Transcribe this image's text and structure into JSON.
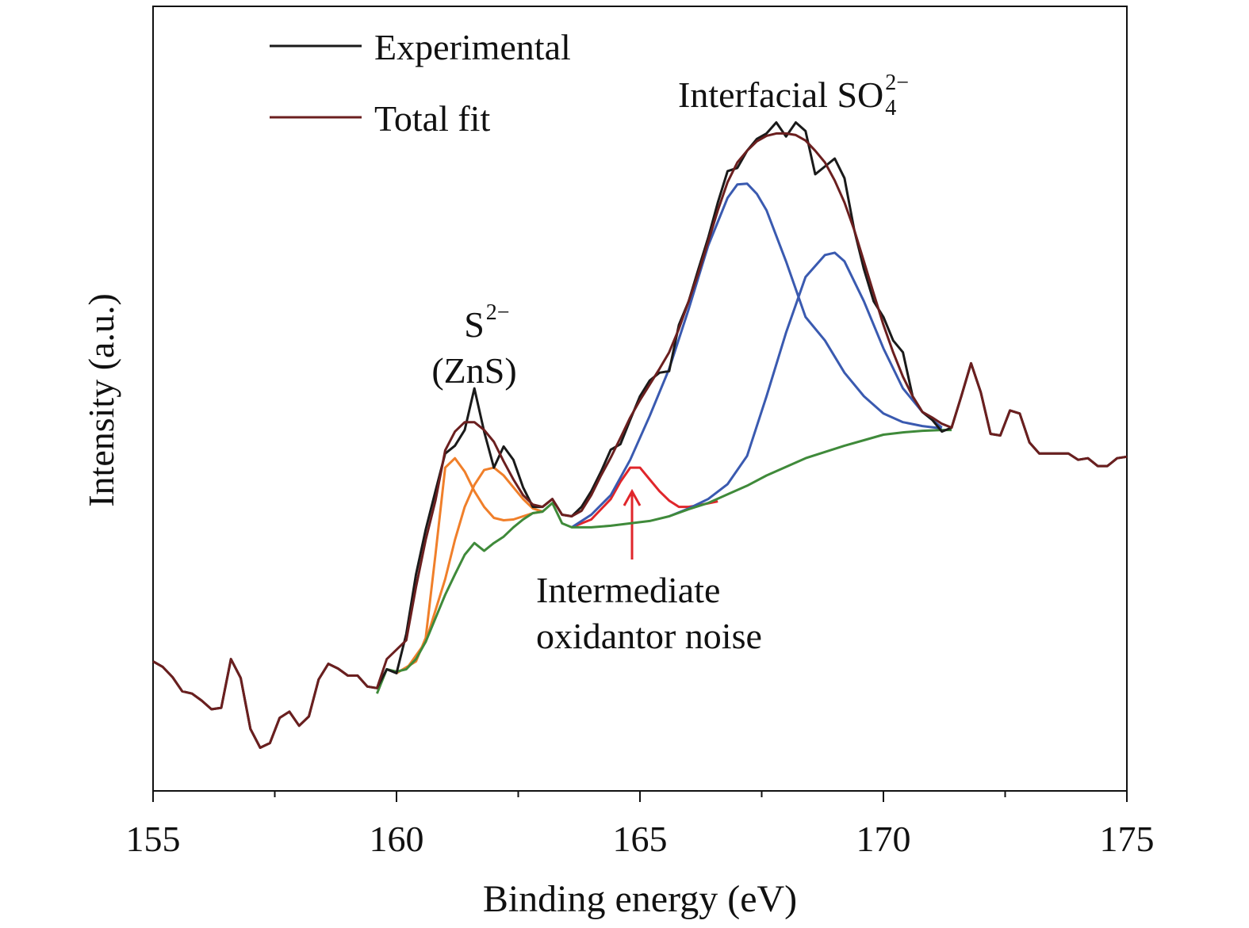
{
  "chart_data": {
    "type": "line",
    "xlabel": "Binding energy (eV)",
    "ylabel": "Intensity (a.u.)",
    "xlim": [
      155,
      175
    ],
    "ylim": [
      0,
      100
    ],
    "xticks": [
      155,
      160,
      165,
      170,
      175
    ],
    "xminorticks": [
      157.5,
      162.5,
      167.5,
      172.5
    ],
    "legend": "upper left",
    "x": [
      155,
      155.2,
      155.4,
      155.6,
      155.8,
      156,
      156.2,
      156.4,
      156.6,
      156.8,
      157,
      157.2,
      157.4,
      157.6,
      157.8,
      158,
      158.2,
      158.4,
      158.6,
      158.8,
      159,
      159.2,
      159.4,
      159.6,
      159.8,
      160,
      160.2,
      160.4,
      160.6,
      160.8,
      161,
      161.2,
      161.4,
      161.6,
      161.8,
      162,
      162.2,
      162.4,
      162.6,
      162.8,
      163,
      163.2,
      163.4,
      163.6,
      163.8,
      164,
      164.2,
      164.4,
      164.6,
      164.8,
      165,
      165.2,
      165.4,
      165.6,
      165.8,
      166,
      166.2,
      166.4,
      166.6,
      166.8,
      167,
      167.2,
      167.4,
      167.6,
      167.8,
      168,
      168.2,
      168.4,
      168.6,
      168.8,
      169,
      169.2,
      169.4,
      169.6,
      169.8,
      170,
      170.2,
      170.4,
      170.6,
      170.8,
      171,
      171.2,
      171.4,
      171.6,
      171.8,
      172,
      172.2,
      172.4,
      172.6,
      172.8,
      173,
      173.2,
      173.4,
      173.6,
      173.8,
      174,
      174.2,
      174.4,
      174.6,
      174.8,
      175
    ],
    "series": [
      {
        "name": "Experimental",
        "color": "#1a1a1a",
        "values": [
          16.5,
          15.8,
          14.5,
          12.7,
          12.4,
          11.5,
          10.4,
          10.6,
          16.8,
          14.4,
          7.9,
          5.5,
          6.1,
          9.3,
          10.1,
          8.3,
          9.5,
          14.2,
          16.2,
          15.6,
          14.7,
          14.7,
          13.3,
          13.1,
          15.5,
          15.0,
          20,
          27.6,
          33.3,
          38.2,
          43,
          44,
          46,
          51.3,
          45.8,
          41.2,
          43.9,
          42.2,
          38.7,
          36.2,
          36.2,
          37.2,
          35.2,
          35,
          36.2,
          38.2,
          40.7,
          43.5,
          44.2,
          47.3,
          50.3,
          52.3,
          53.3,
          53.5,
          59.4,
          62.4,
          66.5,
          70.5,
          75,
          79,
          79.4,
          81.6,
          83.1,
          83.8,
          85.2,
          83.4,
          85.2,
          84.1,
          78.6,
          79.6,
          80.6,
          78.1,
          71.5,
          66.5,
          62.4,
          60.4,
          57.4,
          55.9,
          50.3,
          48.3,
          47.3,
          45.8,
          46.3,
          50.3,
          54.5,
          50.8,
          45.5,
          45.3,
          48.5,
          48.1,
          44.4,
          43,
          43,
          43,
          43,
          42.2,
          42.4,
          41.4,
          41.4,
          42.4,
          42.6
        ]
      },
      {
        "name": "Total fit",
        "color": "#6b1f1f",
        "values": [
          16.5,
          15.8,
          14.5,
          12.7,
          12.4,
          11.5,
          10.4,
          10.6,
          16.8,
          14.4,
          7.9,
          5.5,
          6.1,
          9.3,
          10.1,
          8.3,
          9.5,
          14.2,
          16.2,
          15.6,
          14.7,
          14.7,
          13.3,
          13.1,
          16.8,
          18.0,
          19.2,
          26,
          32,
          37,
          43.4,
          45.8,
          47,
          47,
          46,
          44.5,
          42,
          39.7,
          37.7,
          36.5,
          36.2,
          37.2,
          35.2,
          35,
          35.7,
          37.7,
          40.2,
          42.5,
          45,
          47.6,
          49.8,
          51.8,
          53.8,
          55.9,
          58.9,
          62.4,
          66,
          70,
          74,
          77.6,
          80.1,
          81.6,
          82.8,
          83.5,
          83.8,
          83.8,
          83.6,
          82.9,
          81.6,
          80.1,
          77.8,
          75,
          71.5,
          67.5,
          63.4,
          59.4,
          55.9,
          52.8,
          50.3,
          48.3,
          47.6,
          46.8,
          46.3,
          50.3,
          54.5,
          50.8,
          45.5,
          45.3,
          48.5,
          48.1,
          44.4,
          43,
          43,
          43,
          43,
          42.2,
          42.4,
          41.4,
          41.4,
          42.4,
          42.6
        ]
      },
      {
        "color": "#f07f2a",
        "x": [
          160,
          160.4,
          160.6,
          160.8,
          161,
          161.2,
          161.4,
          161.6,
          161.8,
          162,
          162.2,
          162.4,
          162.6,
          162.8,
          163
        ],
        "values": [
          15,
          16.5,
          19.5,
          30.1,
          41.2,
          42.4,
          40.7,
          38.2,
          36.2,
          34.8,
          34.5,
          34.6,
          35,
          35.4,
          35.6
        ]
      },
      {
        "color": "#f07f2a",
        "x": [
          160.2,
          160.6,
          161,
          161.2,
          161.4,
          161.6,
          161.8,
          162,
          162.2,
          162.4,
          162.6,
          162.8,
          163
        ],
        "values": [
          15.5,
          19,
          27,
          32,
          36.2,
          39,
          40.9,
          41.2,
          40.2,
          38.7,
          37.2,
          36,
          35.6
        ]
      },
      {
        "color": "#e0262b",
        "x": [
          163.6,
          164,
          164.4,
          164.6,
          164.8,
          165,
          165.2,
          165.4,
          165.6,
          165.8,
          166,
          166.2,
          166.6
        ],
        "values": [
          33.6,
          34.6,
          37.2,
          39.4,
          41.2,
          41.2,
          39.7,
          38.2,
          37,
          36.2,
          36.2,
          36.4,
          36.9
        ]
      },
      {
        "color": "#3a5ab0",
        "x": [
          163.6,
          164,
          164.4,
          164.8,
          165.2,
          165.6,
          166,
          166.4,
          166.8,
          167,
          167.2,
          167.4,
          167.6,
          168,
          168.4,
          168.8,
          169.2,
          169.6,
          170,
          170.4,
          170.8,
          171.2
        ],
        "values": [
          33.6,
          35.2,
          37.7,
          42.2,
          47.8,
          53.8,
          61.4,
          69.5,
          75.6,
          77.3,
          77.4,
          76.1,
          74,
          67.5,
          60.4,
          57.4,
          53.3,
          50.3,
          48.1,
          47,
          46.5,
          46.2
        ]
      },
      {
        "color": "#3a5ab0",
        "x": [
          165.6,
          166,
          166.4,
          166.8,
          167.2,
          167.6,
          168,
          168.4,
          168.8,
          169,
          169.2,
          169.6,
          170,
          170.4,
          170.8,
          171.2
        ],
        "values": [
          35,
          36,
          37.2,
          39.1,
          42.7,
          50.3,
          58.4,
          65.5,
          68.3,
          68.6,
          67.5,
          62.4,
          56.4,
          51.3,
          48.3,
          46.3
        ]
      },
      {
        "color": "#3f8a3a",
        "x": [
          159.6,
          159.8,
          160,
          160.2,
          160.4,
          160.6,
          160.8,
          161,
          161.2,
          161.4,
          161.6,
          161.8,
          162,
          162.2,
          162.4,
          162.6,
          162.8,
          163,
          163.2,
          163.4,
          163.6,
          164,
          164.4,
          164.8,
          165.2,
          165.6,
          166,
          166.4,
          166.8,
          167.2,
          167.6,
          168,
          168.4,
          168.8,
          169.2,
          169.6,
          170,
          170.4,
          170.8,
          171.2,
          171.4
        ],
        "values": [
          12.4,
          15.5,
          15.2,
          15.5,
          16.8,
          19,
          22,
          25,
          27.6,
          30.1,
          31.6,
          30.6,
          31.6,
          32.4,
          33.6,
          34.6,
          35.4,
          35.6,
          36.7,
          34.1,
          33.6,
          33.6,
          33.8,
          34.1,
          34.4,
          35,
          35.9,
          36.7,
          37.8,
          38.9,
          40.2,
          41.3,
          42.4,
          43.2,
          44,
          44.7,
          45.4,
          45.7,
          45.9,
          46,
          46
        ]
      }
    ],
    "annotations": [
      {
        "text": "Interfacial SO",
        "sub": "4",
        "sup": "2−"
      },
      {
        "text": "S",
        "sup": "2−"
      },
      {
        "text": "(ZnS)"
      },
      {
        "text": "Intermediate"
      },
      {
        "text": "oxidantor noise"
      }
    ]
  }
}
